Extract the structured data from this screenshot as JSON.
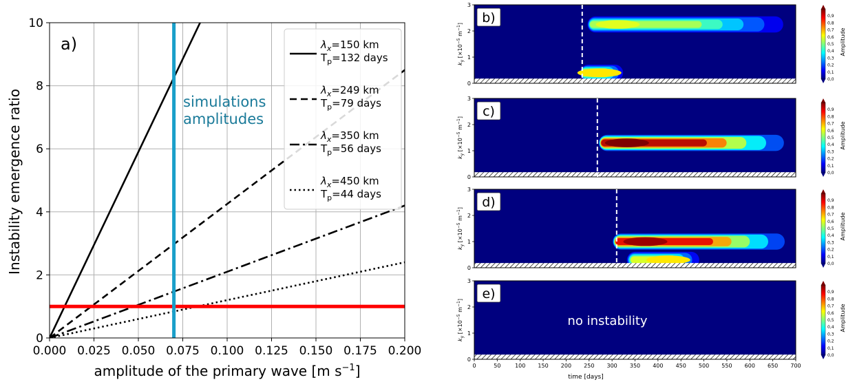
{
  "colors": {
    "sim_line": "#1a9fc9",
    "threshold_line": "#ff0000",
    "sim_text": "#1a7a99",
    "panel_bg": "#00007f"
  },
  "chart_data": [
    {
      "type": "line",
      "panel_label": "a)",
      "xlabel_main": "amplitude of the primary wave [m s",
      "xlabel_sup": "−1",
      "xlabel_end": "]",
      "ylabel": "Instability emergence ratio",
      "xlim": [
        0,
        0.2
      ],
      "ylim": [
        0,
        10
      ],
      "xticks": [
        "0.000",
        "0.025",
        "0.050",
        "0.075",
        "0.100",
        "0.125",
        "0.150",
        "0.175",
        "0.200"
      ],
      "yticks": [
        "0",
        "2",
        "4",
        "6",
        "8",
        "10"
      ],
      "grid": true,
      "legend_position": "top-right",
      "series": [
        {
          "name_lambda": "=150 km",
          "name_tp": "=132 days",
          "style": "solid",
          "slope": 118.0
        },
        {
          "name_lambda": "=249 km",
          "name_tp": "=79 days",
          "style": "dashed",
          "slope": 42.5
        },
        {
          "name_lambda": "=350 km",
          "name_tp": "=56 days",
          "style": "dashdot",
          "slope": 21.0
        },
        {
          "name_lambda": "=450 km",
          "name_tp": "=44 days",
          "style": "dotted",
          "slope": 12.0
        }
      ],
      "vline": {
        "x": 0.07,
        "label_1": "simulations",
        "label_2": "amplitudes"
      },
      "hline": {
        "y": 1.0
      }
    },
    {
      "type": "heatmap",
      "shared": {
        "ylabel": "k",
        "ylabel_sub": "y",
        "ylabel_rest": " [×10",
        "ylabel_sup": "−5",
        "ylabel_end": " m",
        "ylabel_sup2": "−1",
        "ylabel_close": "]",
        "xlabel": "time [days]",
        "xlim": [
          0,
          700
        ],
        "ylim": [
          0,
          3
        ],
        "xticks": [
          "0",
          "50",
          "100",
          "150",
          "200",
          "250",
          "300",
          "350",
          "400",
          "450",
          "500",
          "550",
          "600",
          "650",
          "700"
        ],
        "yticks": [
          "0",
          "1",
          "2",
          "3"
        ],
        "colorbar_label": "Amplitude",
        "colorbar_ticks": [
          "0,0",
          "0,1",
          "0,2",
          "0,3",
          "0,4",
          "0,5",
          "0,6",
          "0,7",
          "0,8",
          "0,9"
        ]
      },
      "panels": [
        {
          "label": "b)",
          "onset_day": 235,
          "blobs": [
            {
              "t0": 245,
              "t1": 700,
              "k": 2.25,
              "amp": 0.55,
              "tpeak": 290
            },
            {
              "t0": 230,
              "t1": 330,
              "k": 0.4,
              "amp": 0.6,
              "tpeak": 250
            }
          ]
        },
        {
          "label": "c)",
          "onset_day": 268,
          "blobs": [
            {
              "t0": 270,
              "t1": 700,
              "k": 1.3,
              "amp": 0.95,
              "tpeak": 310
            }
          ]
        },
        {
          "label": "d)",
          "onset_day": 310,
          "blobs": [
            {
              "t0": 300,
              "t1": 700,
              "k": 1.0,
              "amp": 0.9,
              "tpeak": 350
            },
            {
              "t0": 330,
              "t1": 500,
              "k": 0.3,
              "amp": 0.6,
              "tpeak": 400
            }
          ]
        },
        {
          "label": "e)",
          "onset_day": null,
          "annotation": "no instability",
          "blobs": []
        }
      ]
    }
  ]
}
